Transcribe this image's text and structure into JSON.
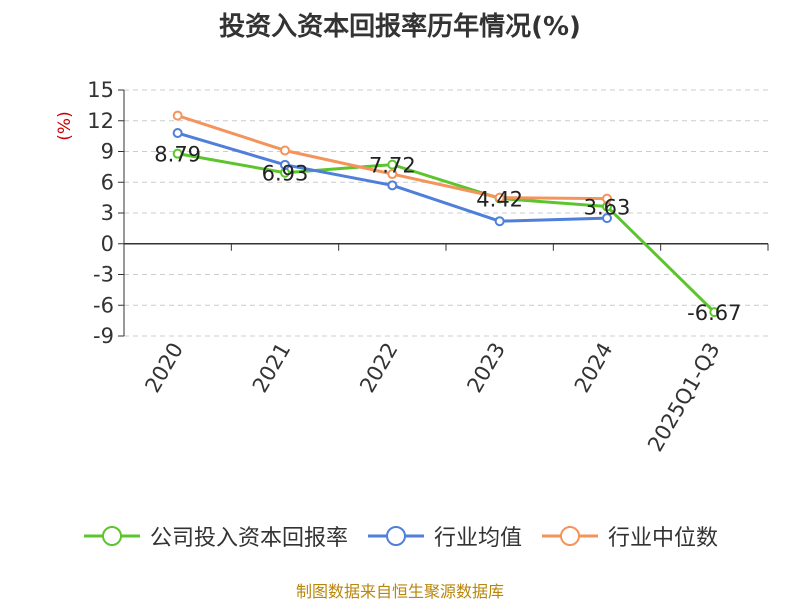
{
  "chart_data": {
    "type": "line",
    "title": "投资入资本回报率历年情况(%)",
    "ylabel": "(%)",
    "xlabel": "",
    "categories": [
      "2020",
      "2021",
      "2022",
      "2023",
      "2024",
      "2025Q1-Q3"
    ],
    "ylim": [
      -9,
      15
    ],
    "yticks": [
      15,
      12,
      9,
      6,
      3,
      0,
      -3,
      -6,
      -9
    ],
    "grid": true,
    "legend_position": "bottom",
    "series": [
      {
        "name": "公司投入资本回报率",
        "color": "#5cc42c",
        "values": [
          8.79,
          6.93,
          7.72,
          4.42,
          3.63,
          -6.67
        ],
        "data_labels": [
          "8.79",
          "6.93",
          "7.72",
          "4.42",
          "3.63",
          "-6.67"
        ]
      },
      {
        "name": "行业均值",
        "color": "#4f7fd9",
        "values": [
          10.8,
          7.7,
          5.7,
          2.2,
          2.5,
          null
        ]
      },
      {
        "name": "行业中位数",
        "color": "#f4935a",
        "values": [
          12.5,
          9.1,
          6.8,
          4.5,
          4.4,
          null
        ]
      }
    ]
  },
  "source": "制图数据来自恒生聚源数据库"
}
